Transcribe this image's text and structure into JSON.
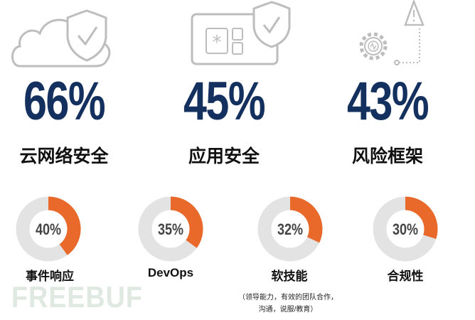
{
  "stats": [
    {
      "value": "66%",
      "label": "云网络安全",
      "icon": "cloud-shield-icon"
    },
    {
      "value": "45%",
      "label": "应用安全",
      "icon": "app-shield-icon"
    },
    {
      "value": "43%",
      "label": "风险框架",
      "icon": "gear-warning-icon"
    }
  ],
  "chart_data": {
    "type": "pie",
    "variant": "donut",
    "categories": [
      "事件响应",
      "DevOps",
      "软技能",
      "合规性"
    ],
    "values": [
      40,
      35,
      32,
      30
    ],
    "value_labels": [
      "40%",
      "35%",
      "32%",
      "30%"
    ],
    "note": "（领导能力，有效的团队合作，沟通，说服/教育）",
    "note_lines": [
      "（领导能力，有效的团队合作，",
      "沟通，说服/教育）"
    ]
  },
  "colors": {
    "accent": "#e8692a",
    "track": "#e3e3e3",
    "number": "#13305e",
    "icon": "#bdbdbd"
  },
  "watermark": "FREEBUF"
}
